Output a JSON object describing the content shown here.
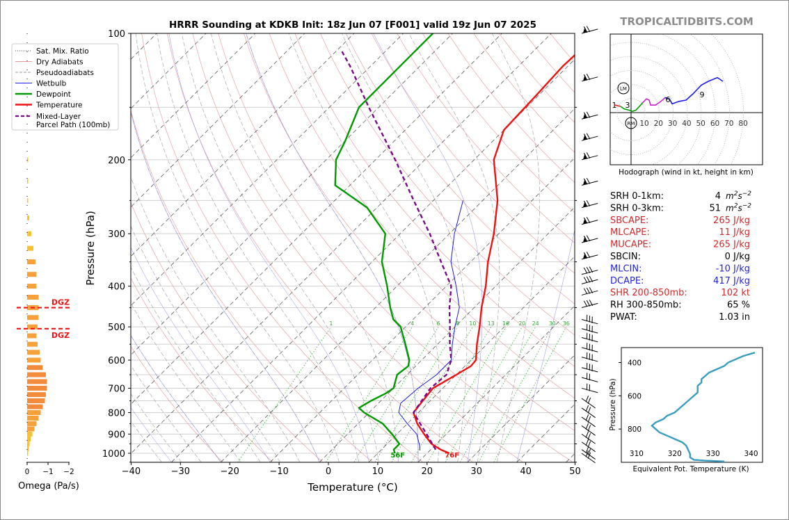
{
  "title": "HRRR Sounding at KDKB Init: 18z Jun 07 [F001] valid 19z Jun 07 2025",
  "watermark": "TROPICALTIDBITS.COM",
  "skewt": {
    "xlabel": "Temperature (°C)",
    "ylabel": "Pressure (hPa)",
    "xticks": [
      -40,
      -30,
      -20,
      -10,
      0,
      10,
      20,
      30,
      40,
      50
    ],
    "yticks": [
      100,
      200,
      300,
      400,
      500,
      600,
      700,
      800,
      900,
      1000
    ],
    "xlim": [
      -40,
      50
    ],
    "ylim": [
      1050,
      100
    ],
    "surface_dewpoint_label": "56F",
    "surface_temp_label": "76F",
    "mixing_ratio_labels": [
      "1",
      "4",
      "6",
      "8",
      "10",
      "13",
      "16",
      "20",
      "24",
      "30",
      "36"
    ]
  },
  "legend": [
    {
      "label": "Sat. Mix. Ratio",
      "style": "dotted",
      "color": "#444444"
    },
    {
      "label": "Dry Adiabats",
      "style": "solid",
      "color": "#e79b9b"
    },
    {
      "label": "Pseudoadiabats",
      "style": "dashed",
      "color": "#9a9a9a"
    },
    {
      "label": "Wetbulb",
      "style": "solid",
      "color": "#1a1aee"
    },
    {
      "label": "Dewpoint",
      "style": "solid",
      "color": "#009900"
    },
    {
      "label": "Temperature",
      "style": "solid",
      "color": "#ee1111"
    },
    {
      "label": "Mixed-Layer\nParcel Path (100mb)",
      "style": "dashed",
      "color": "#7a0a8a"
    }
  ],
  "omega": {
    "xlabel": "Omega (Pa/s)",
    "xticks": [
      "0",
      "−1",
      "−2"
    ],
    "dgz_label": "DGZ",
    "dgz_top_p": 450,
    "dgz_bottom_p": 505
  },
  "hodograph": {
    "caption": "Hodograph (wind in kt, height in km)",
    "ring_labels": [
      "10",
      "20",
      "30",
      "40",
      "50",
      "60",
      "70",
      "80"
    ],
    "markers": {
      "lm": "LM",
      "rm": "RM"
    },
    "height_labels": [
      "1",
      "3",
      "6",
      "9"
    ]
  },
  "stats": [
    {
      "label": "SRH 0-1km:",
      "value": "4",
      "unit": "m2s-2",
      "color": "#000000"
    },
    {
      "label": "SRH 0-3km:",
      "value": "51",
      "unit": "m2s-2",
      "color": "#000000"
    },
    {
      "label": "SBCAPE:",
      "value": "265 J/kg",
      "unit": "",
      "color": "#d62728"
    },
    {
      "label": "MLCAPE:",
      "value": "11 J/kg",
      "unit": "",
      "color": "#d62728"
    },
    {
      "label": "MUCAPE:",
      "value": "265 J/kg",
      "unit": "",
      "color": "#d62728"
    },
    {
      "label": "SBCIN:",
      "value": "0 J/kg",
      "unit": "",
      "color": "#000000"
    },
    {
      "label": "MLCIN:",
      "value": "-10 J/kg",
      "unit": "",
      "color": "#2222dd"
    },
    {
      "label": "DCAPE:",
      "value": "417 J/kg",
      "unit": "",
      "color": "#2222dd"
    },
    {
      "label": "SHR 200-850mb:",
      "value": "102 kt",
      "unit": "",
      "color": "#d62728"
    },
    {
      "label": "RH 300-850mb:",
      "value": "65 %",
      "unit": "",
      "color": "#000000"
    },
    {
      "label": "PWAT:",
      "value": "1.03 in",
      "unit": "",
      "color": "#000000"
    }
  ],
  "theta_e": {
    "xlabel": "Equivalent Pot. Temperature (K)",
    "ylabel": "Pressure (hPa)",
    "xticks": [
      310,
      320,
      330,
      340
    ],
    "yticks": [
      400,
      600,
      800
    ],
    "xlim": [
      306,
      343
    ],
    "ylim": [
      1000,
      310
    ]
  },
  "chart_data": [
    {
      "type": "line",
      "chart": "skew-t",
      "title": "HRRR Sounding at KDKB Init: 18z Jun 07 [F001] valid 19z Jun 07 2025",
      "xlabel": "Temperature (°C)",
      "ylabel": "Pressure (hPa)",
      "xlim": [
        -40,
        50
      ],
      "ylim": [
        1050,
        100
      ],
      "series": [
        {
          "name": "Temperature",
          "color": "#ee1111",
          "points": [
            [
              1000,
              24.5
            ],
            [
              980,
              22
            ],
            [
              950,
              19
            ],
            [
              900,
              15.5
            ],
            [
              850,
              12
            ],
            [
              800,
              9
            ],
            [
              750,
              8.5
            ],
            [
              700,
              8
            ],
            [
              650,
              10
            ],
            [
              620,
              11.2
            ],
            [
              600,
              11
            ],
            [
              550,
              8
            ],
            [
              500,
              5
            ],
            [
              450,
              1.5
            ],
            [
              400,
              -2
            ],
            [
              350,
              -6.5
            ],
            [
              300,
              -11
            ],
            [
              250,
              -17
            ],
            [
              200,
              -26
            ],
            [
              170,
              -30
            ],
            [
              140,
              -30.5
            ],
            [
              120,
              -31
            ],
            [
              100,
              -30.5
            ]
          ]
        },
        {
          "name": "Dewpoint",
          "color": "#009900",
          "points": [
            [
              1000,
              13.5
            ],
            [
              980,
              12.5
            ],
            [
              950,
              12.5
            ],
            [
              900,
              9
            ],
            [
              850,
              5
            ],
            [
              800,
              -1
            ],
            [
              780,
              -3
            ],
            [
              750,
              -2
            ],
            [
              720,
              -0.5
            ],
            [
              700,
              0
            ],
            [
              650,
              -2
            ],
            [
              620,
              -1.5
            ],
            [
              600,
              -2.5
            ],
            [
              550,
              -6.5
            ],
            [
              500,
              -11
            ],
            [
              480,
              -14
            ],
            [
              450,
              -17
            ],
            [
              400,
              -22
            ],
            [
              350,
              -28
            ],
            [
              300,
              -33
            ],
            [
              260,
              -42
            ],
            [
              230,
              -53
            ],
            [
              200,
              -58
            ],
            [
              180,
              -60
            ],
            [
              150,
              -64
            ],
            [
              120,
              -64
            ],
            [
              100,
              -64
            ]
          ]
        },
        {
          "name": "Wetbulb",
          "color": "#1a1aee",
          "points": [
            [
              985,
              18
            ],
            [
              960,
              17
            ],
            [
              900,
              14
            ],
            [
              850,
              10
            ],
            [
              800,
              6
            ],
            [
              760,
              4.5
            ],
            [
              700,
              5
            ],
            [
              650,
              6
            ],
            [
              600,
              6
            ],
            [
              550,
              3
            ],
            [
              500,
              0
            ],
            [
              450,
              -3
            ],
            [
              400,
              -8
            ],
            [
              350,
              -14
            ],
            [
              300,
              -19
            ],
            [
              250,
              -24
            ]
          ]
        },
        {
          "name": "Mixed-Layer\nParcel Path (100mb)",
          "color": "#7a0a8a",
          "points": [
            [
              980,
              21
            ],
            [
              900,
              16
            ],
            [
              800,
              9
            ],
            [
              700,
              7.5
            ],
            [
              650,
              8
            ],
            [
              600,
              6
            ],
            [
              550,
              2.5
            ],
            [
              500,
              -1
            ],
            [
              450,
              -5
            ],
            [
              400,
              -9
            ],
            [
              350,
              -16
            ],
            [
              300,
              -24
            ],
            [
              250,
              -34
            ],
            [
              200,
              -46
            ],
            [
              150,
              -62
            ],
            [
              120,
              -74
            ],
            [
              110,
              -79
            ]
          ]
        }
      ]
    },
    {
      "type": "bar",
      "chart": "omega",
      "xlabel": "Omega (Pa/s)",
      "xlim": [
        0.2,
        -2.5
      ],
      "levels_hpa": [
        1000,
        975,
        950,
        925,
        900,
        875,
        850,
        825,
        800,
        775,
        750,
        725,
        700,
        675,
        650,
        625,
        600,
        575,
        550,
        525,
        500,
        475,
        450,
        425,
        400,
        375,
        350,
        325,
        300,
        275,
        250,
        225,
        200
      ],
      "values": [
        -0.05,
        -0.08,
        -0.12,
        -0.18,
        -0.25,
        -0.35,
        -0.45,
        -0.55,
        -0.65,
        -0.75,
        -0.85,
        -0.9,
        -0.95,
        -0.95,
        -0.9,
        -0.75,
        -0.65,
        -0.6,
        -0.5,
        -0.45,
        -0.5,
        -0.55,
        -0.55,
        -0.55,
        -0.45,
        -0.45,
        -0.4,
        -0.3,
        -0.2,
        -0.1,
        -0.05,
        -0.05,
        -0.05
      ]
    },
    {
      "type": "line",
      "chart": "hodograph",
      "xlabel": "",
      "ylabel": "",
      "series": [
        {
          "name": "0-3 km",
          "color": "#dd2222",
          "points": [
            [
              2,
              6
            ],
            [
              10,
              5
            ]
          ]
        },
        {
          "name": "3-6 km",
          "color": "#009900",
          "points": [
            [
              10,
              5
            ],
            [
              15,
              3
            ],
            [
              22,
              2
            ],
            [
              27,
              1
            ],
            [
              32,
              2
            ],
            [
              37,
              5
            ],
            [
              42,
              8
            ]
          ]
        },
        {
          "name": "6-9 km",
          "color": "#cc22cc",
          "points": [
            [
              42,
              8
            ],
            [
              47,
              11
            ],
            [
              51,
              10
            ],
            [
              53,
              6
            ],
            [
              60,
              6
            ],
            [
              68,
              9
            ],
            [
              74,
              12
            ]
          ]
        },
        {
          "name": "9+ km",
          "color": "#1a1aee",
          "points": [
            [
              74,
              12
            ],
            [
              80,
              11
            ],
            [
              84,
              7
            ],
            [
              94,
              9
            ],
            [
              104,
              10
            ],
            [
              114,
              15
            ],
            [
              126,
              22
            ],
            [
              136,
              25
            ],
            [
              149,
              28
            ],
            [
              157,
              25
            ]
          ]
        }
      ]
    },
    {
      "type": "line",
      "chart": "theta-e",
      "xlabel": "Equivalent Pot. Temperature (K)",
      "ylabel": "Pressure (hPa)",
      "xlim": [
        306,
        343
      ],
      "ylim": [
        1000,
        310
      ],
      "series": [
        {
          "name": "Theta-e",
          "color": "#3a9cbf",
          "points": [
            [
              333,
              995
            ],
            [
              328,
              990
            ],
            [
              325,
              985
            ],
            [
              324,
              970
            ],
            [
              324,
              950
            ],
            [
              323,
              900
            ],
            [
              322,
              880
            ],
            [
              320,
              860
            ],
            [
              318,
              840
            ],
            [
              316,
              820
            ],
            [
              315,
              800
            ],
            [
              314,
              780
            ],
            [
              315,
              760
            ],
            [
              317,
              740
            ],
            [
              318,
              720
            ],
            [
              320,
              700
            ],
            [
              321,
              680
            ],
            [
              322,
              660
            ],
            [
              323,
              640
            ],
            [
              324,
              620
            ],
            [
              325,
              600
            ],
            [
              326,
              580
            ],
            [
              326,
              560
            ],
            [
              326,
              540
            ],
            [
              327,
              520
            ],
            [
              327,
              500
            ],
            [
              328,
              480
            ],
            [
              329,
              460
            ],
            [
              331,
              440
            ],
            [
              333,
              420
            ],
            [
              334,
              400
            ],
            [
              336,
              380
            ],
            [
              338,
              360
            ],
            [
              341,
              340
            ]
          ]
        }
      ]
    }
  ]
}
